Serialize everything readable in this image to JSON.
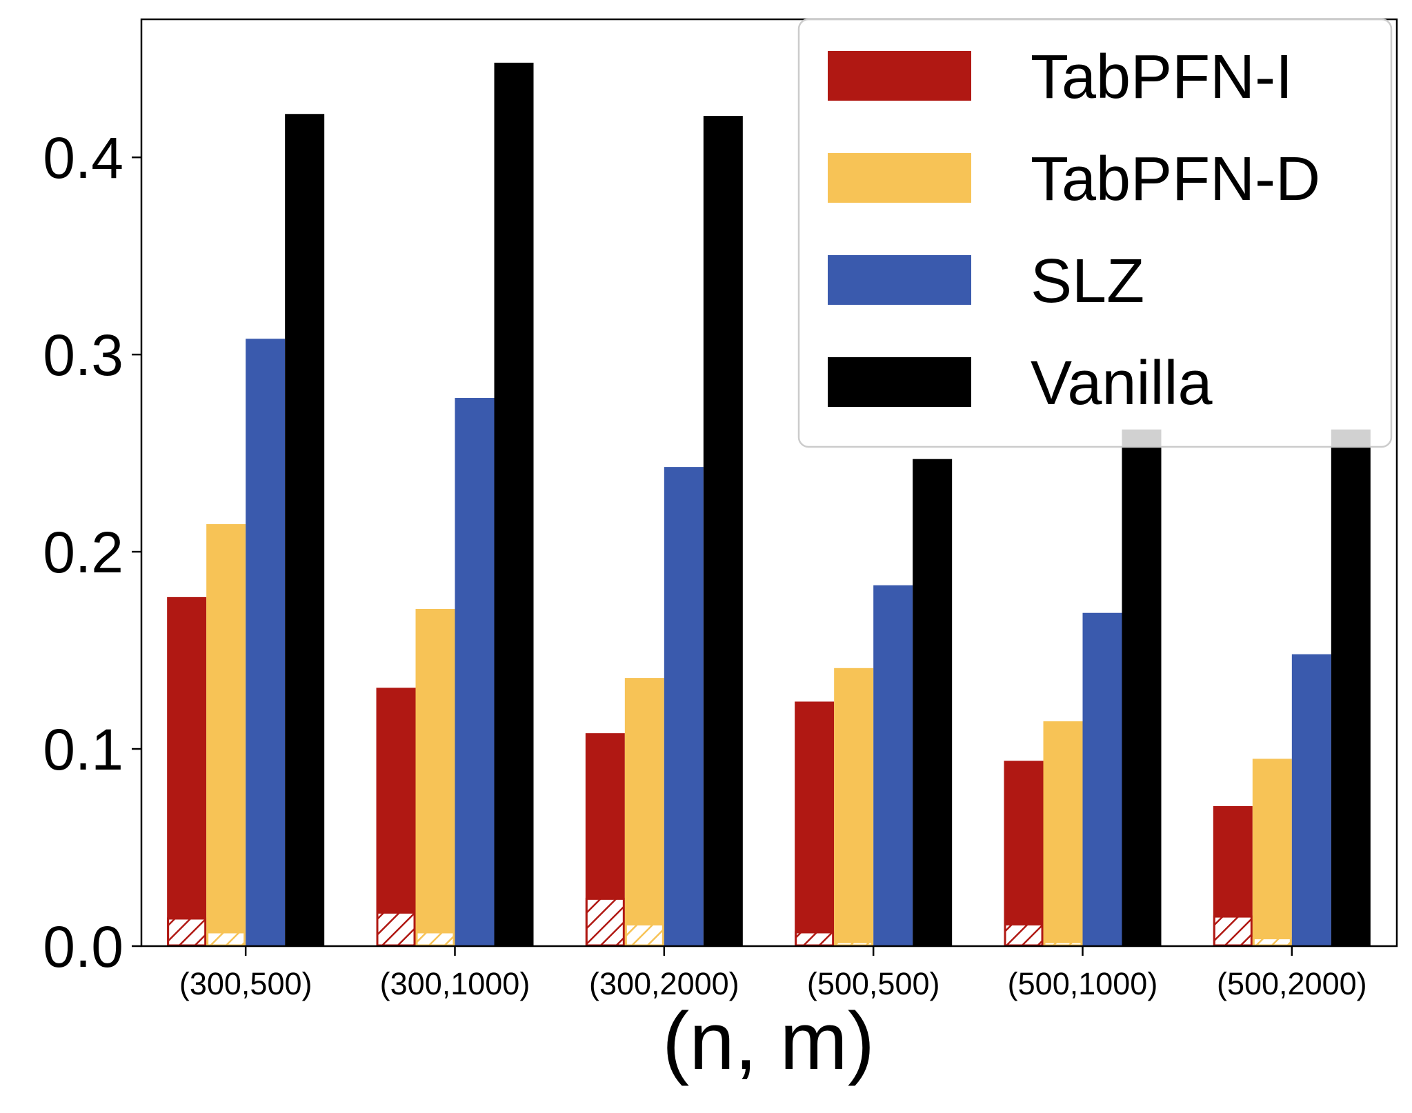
{
  "chart_data": {
    "type": "bar",
    "title": "",
    "xlabel": "(n, m)",
    "ylabel": "",
    "ylim": [
      0,
      0.47
    ],
    "yticks": [
      "0.0",
      "0.1",
      "0.2",
      "0.3",
      "0.4"
    ],
    "categories": [
      "(300,500)",
      "(300,1000)",
      "(300,2000)",
      "(500,500)",
      "(500,1000)",
      "(500,2000)"
    ],
    "series": [
      {
        "name": "TabPFN-I",
        "color": "#b01813",
        "values": [
          0.177,
          0.131,
          0.108,
          0.124,
          0.094,
          0.071
        ],
        "hatched_values": [
          0.014,
          0.017,
          0.024,
          0.007,
          0.011,
          0.015
        ]
      },
      {
        "name": "TabPFN-D",
        "color": "#f7c356",
        "values": [
          0.214,
          0.171,
          0.136,
          0.141,
          0.114,
          0.095
        ],
        "hatched_values": [
          0.007,
          0.007,
          0.011,
          0.002,
          0.002,
          0.004
        ]
      },
      {
        "name": "SLZ",
        "color": "#3a5aad",
        "values": [
          0.308,
          0.278,
          0.243,
          0.183,
          0.169,
          0.148
        ]
      },
      {
        "name": "Vanilla",
        "color": "#000000",
        "values": [
          0.422,
          0.448,
          0.421,
          0.247,
          0.262,
          0.262
        ]
      }
    ],
    "legend_position": "top-right",
    "grid": false
  }
}
